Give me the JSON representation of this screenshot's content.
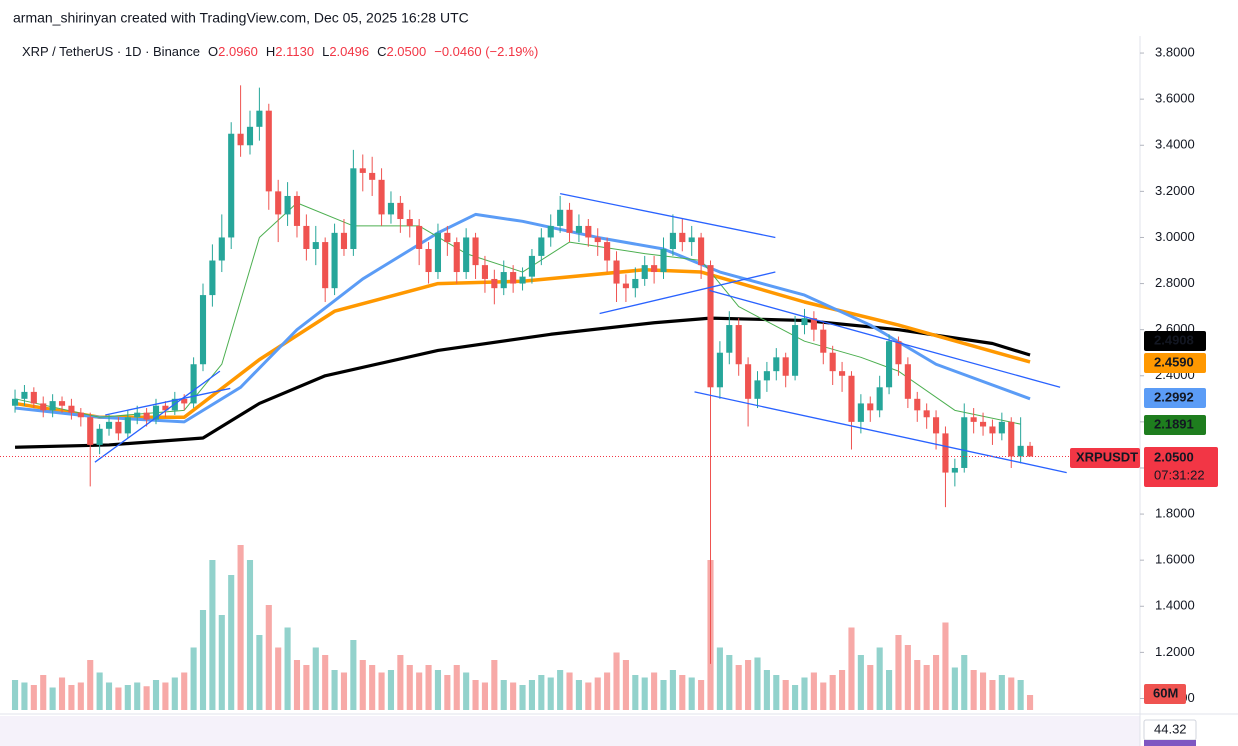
{
  "header": {
    "credit": "arman_shirinyan created with TradingView.com, Dec 05, 2025 16:28 UTC",
    "symbol": "XRP / TetherUS · 1D · Binance",
    "ohlc": [
      {
        "label": "O",
        "value": "2.0960"
      },
      {
        "label": "H",
        "value": "2.1130"
      },
      {
        "label": "L",
        "value": "2.0496"
      },
      {
        "label": "C",
        "value": "2.0500"
      }
    ],
    "change": "−0.0460 (−2.19%)"
  },
  "chart_data": {
    "type": "candlestick",
    "up_color": "#26a69a",
    "down_color": "#ef5350",
    "volume_up_color": "rgba(38,166,154,0.5)",
    "volume_down_color": "rgba(239,83,80,0.5)",
    "open": [
      2.27,
      2.3,
      2.33,
      2.28,
      2.25,
      2.29,
      2.27,
      2.24,
      2.22,
      2.1,
      2.17,
      2.2,
      2.15,
      2.22,
      2.24,
      2.21,
      2.27,
      2.25,
      2.3,
      2.28,
      2.45,
      2.75,
      2.9,
      3.0,
      3.45,
      3.4,
      3.48,
      3.55,
      3.2,
      3.1,
      3.18,
      3.05,
      2.95,
      2.98,
      2.78,
      3.02,
      2.95,
      3.3,
      3.28,
      3.25,
      3.1,
      3.15,
      3.08,
      3.05,
      2.95,
      2.85,
      3.02,
      2.98,
      2.85,
      3.0,
      2.88,
      2.82,
      2.78,
      2.85,
      2.8,
      2.83,
      2.92,
      3.0,
      3.05,
      3.12,
      3.02,
      3.05,
      3.0,
      2.98,
      2.9,
      2.8,
      2.78,
      2.82,
      2.88,
      2.85,
      2.95,
      3.02,
      2.98,
      3.0,
      2.88,
      2.35,
      2.5,
      2.62,
      2.45,
      2.3,
      2.38,
      2.42,
      2.48,
      2.4,
      2.62,
      2.65,
      2.6,
      2.5,
      2.42,
      2.4,
      2.2,
      2.28,
      2.25,
      2.35,
      2.55,
      2.45,
      2.3,
      2.25,
      2.22,
      2.15,
      1.98,
      2.0,
      2.22,
      2.2,
      2.18,
      2.15,
      2.2,
      2.05,
      2.096
    ],
    "high": [
      2.34,
      2.36,
      2.35,
      2.31,
      2.32,
      2.31,
      2.3,
      2.26,
      2.24,
      2.19,
      2.23,
      2.22,
      2.25,
      2.27,
      2.26,
      2.3,
      2.29,
      2.33,
      2.32,
      2.48,
      2.8,
      2.97,
      3.1,
      3.5,
      3.66,
      3.55,
      3.65,
      3.58,
      3.25,
      3.24,
      3.2,
      3.1,
      3.05,
      3.0,
      3.06,
      3.08,
      3.38,
      3.36,
      3.35,
      3.3,
      3.2,
      3.18,
      3.12,
      3.08,
      2.98,
      3.06,
      3.05,
      3.0,
      3.04,
      3.02,
      2.92,
      2.86,
      2.9,
      2.88,
      2.87,
      2.95,
      3.04,
      3.1,
      3.18,
      3.15,
      3.1,
      3.08,
      3.04,
      3.0,
      2.94,
      2.84,
      2.87,
      2.92,
      2.92,
      3.0,
      3.1,
      3.08,
      3.05,
      3.02,
      2.9,
      2.55,
      2.68,
      2.65,
      2.48,
      2.42,
      2.46,
      2.52,
      2.5,
      2.66,
      2.69,
      2.68,
      2.63,
      2.53,
      2.46,
      2.42,
      2.32,
      2.31,
      2.4,
      2.58,
      2.57,
      2.48,
      2.33,
      2.28,
      2.25,
      2.18,
      2.04,
      2.28,
      2.26,
      2.24,
      2.21,
      2.24,
      2.22,
      2.22,
      2.113
    ],
    "low": [
      2.24,
      2.27,
      2.26,
      2.22,
      2.22,
      2.24,
      2.21,
      2.18,
      1.92,
      2.06,
      2.14,
      2.12,
      2.13,
      2.19,
      2.18,
      2.19,
      2.22,
      2.23,
      2.25,
      2.26,
      2.42,
      2.7,
      2.85,
      2.95,
      3.35,
      3.36,
      3.42,
      3.12,
      2.98,
      3.05,
      3.0,
      2.9,
      2.88,
      2.72,
      2.75,
      2.92,
      2.92,
      3.2,
      3.18,
      3.05,
      3.06,
      3.02,
      3.0,
      2.88,
      2.8,
      2.82,
      2.92,
      2.8,
      2.82,
      2.82,
      2.76,
      2.71,
      2.75,
      2.76,
      2.77,
      2.8,
      2.88,
      2.96,
      3.02,
      2.98,
      2.98,
      2.96,
      2.92,
      2.85,
      2.72,
      2.72,
      2.74,
      2.79,
      2.8,
      2.82,
      2.92,
      2.94,
      2.92,
      2.82,
      1.15,
      2.3,
      2.45,
      2.4,
      2.18,
      2.26,
      2.33,
      2.38,
      2.35,
      2.38,
      2.58,
      2.55,
      2.45,
      2.36,
      2.33,
      2.08,
      2.15,
      2.2,
      2.22,
      2.32,
      2.4,
      2.26,
      2.2,
      2.17,
      2.08,
      1.83,
      1.92,
      1.98,
      2.15,
      2.14,
      2.1,
      2.12,
      2.0,
      2.02,
      2.0496
    ],
    "close": [
      2.3,
      2.33,
      2.28,
      2.25,
      2.29,
      2.27,
      2.24,
      2.22,
      2.1,
      2.17,
      2.2,
      2.15,
      2.22,
      2.24,
      2.21,
      2.27,
      2.25,
      2.3,
      2.28,
      2.45,
      2.75,
      2.9,
      3.0,
      3.45,
      3.4,
      3.48,
      3.55,
      3.2,
      3.1,
      3.18,
      3.05,
      2.95,
      2.98,
      2.78,
      3.02,
      2.95,
      3.3,
      3.28,
      3.25,
      3.1,
      3.15,
      3.08,
      3.05,
      2.95,
      2.85,
      3.02,
      2.98,
      2.85,
      3.0,
      2.88,
      2.82,
      2.78,
      2.85,
      2.8,
      2.83,
      2.92,
      3.0,
      3.05,
      3.12,
      3.02,
      3.05,
      3.0,
      2.98,
      2.9,
      2.8,
      2.78,
      2.82,
      2.88,
      2.85,
      2.95,
      3.02,
      2.98,
      3.0,
      2.88,
      2.35,
      2.5,
      2.62,
      2.45,
      2.3,
      2.38,
      2.42,
      2.48,
      2.4,
      2.62,
      2.65,
      2.6,
      2.5,
      2.42,
      2.4,
      2.2,
      2.28,
      2.25,
      2.35,
      2.55,
      2.45,
      2.3,
      2.25,
      2.22,
      2.15,
      1.98,
      2.0,
      2.22,
      2.2,
      2.18,
      2.15,
      2.2,
      2.05,
      2.096,
      2.05
    ],
    "volume": [
      120,
      110,
      100,
      140,
      90,
      130,
      100,
      110,
      200,
      150,
      110,
      90,
      100,
      110,
      95,
      120,
      110,
      130,
      150,
      250,
      400,
      600,
      380,
      540,
      660,
      600,
      300,
      420,
      250,
      330,
      200,
      180,
      250,
      220,
      160,
      150,
      280,
      200,
      180,
      150,
      160,
      220,
      180,
      150,
      180,
      160,
      140,
      180,
      150,
      120,
      110,
      200,
      120,
      110,
      100,
      120,
      140,
      130,
      160,
      150,
      120,
      110,
      130,
      150,
      230,
      200,
      140,
      130,
      150,
      120,
      160,
      140,
      130,
      120,
      600,
      250,
      220,
      180,
      200,
      210,
      160,
      140,
      120,
      100,
      130,
      150,
      110,
      140,
      160,
      330,
      220,
      180,
      250,
      160,
      300,
      260,
      200,
      180,
      220,
      350,
      170,
      220,
      160,
      150,
      120,
      140,
      130,
      120,
      60
    ],
    "volume_lim": [
      0,
      680
    ],
    "volume_label": "60M",
    "moving_averages": [
      {
        "color": "#000000",
        "width": 3.2,
        "x": [
          0,
          10,
          20,
          26,
          33,
          45,
          57,
          68,
          74,
          84,
          94,
          104,
          108
        ],
        "values": [
          2.09,
          2.1,
          2.13,
          2.28,
          2.4,
          2.51,
          2.58,
          2.63,
          2.65,
          2.64,
          2.6,
          2.54,
          2.49
        ]
      },
      {
        "color": "#ff9800",
        "width": 3.5,
        "x": [
          0,
          9,
          18,
          26,
          34,
          45,
          54,
          67,
          73,
          84,
          94,
          108
        ],
        "values": [
          2.28,
          2.22,
          2.22,
          2.47,
          2.68,
          2.8,
          2.81,
          2.86,
          2.85,
          2.72,
          2.62,
          2.46
        ]
      },
      {
        "color": "#5b9cf6",
        "width": 3,
        "x": [
          0,
          9,
          18,
          24,
          30,
          37,
          45,
          49,
          54,
          62,
          69,
          75,
          84,
          91,
          98,
          108
        ],
        "values": [
          2.26,
          2.22,
          2.2,
          2.35,
          2.6,
          2.82,
          3.02,
          3.1,
          3.07,
          3.0,
          2.95,
          2.85,
          2.75,
          2.62,
          2.45,
          2.3
        ]
      },
      {
        "color": "#4caf50",
        "width": 1,
        "x": [
          0,
          9,
          18,
          22,
          26,
          30,
          36,
          43,
          48,
          54,
          59,
          67,
          73,
          77,
          84,
          90,
          94,
          100,
          107
        ],
        "values": [
          2.3,
          2.22,
          2.25,
          2.45,
          3.0,
          3.15,
          3.05,
          3.05,
          2.93,
          2.85,
          2.98,
          2.93,
          2.9,
          2.7,
          2.55,
          2.48,
          2.42,
          2.25,
          2.19
        ]
      }
    ],
    "drawing_color": "#2962ff",
    "drawings": [
      {
        "x": [
          8.5,
          21.8
        ],
        "values": [
          2.025,
          2.42
        ]
      },
      {
        "x": [
          9.6,
          22.9
        ],
        "values": [
          2.23,
          2.345
        ]
      },
      {
        "x": [
          58,
          80.9
        ],
        "values": [
          3.19,
          3.0
        ]
      },
      {
        "x": [
          62.2,
          80.9
        ],
        "values": [
          2.67,
          2.85
        ]
      },
      {
        "x": [
          72.3,
          111.9
        ],
        "values": [
          2.33,
          1.98
        ]
      },
      {
        "x": [
          73.9,
          111.2
        ],
        "values": [
          2.77,
          2.35
        ]
      }
    ],
    "xlim": [
      -1.6,
      119.7
    ],
    "ylim": [
      0.95,
      3.874
    ],
    "yticks": [
      {
        "value": 1.0,
        "label": "1.0000"
      },
      {
        "value": 1.2,
        "label": "1.2000"
      },
      {
        "value": 1.4,
        "label": "1.4000"
      },
      {
        "value": 1.6,
        "label": "1.6000"
      },
      {
        "value": 1.8,
        "label": "1.8000"
      },
      {
        "value": 2.0,
        "label": "2.0000"
      },
      {
        "value": 2.2,
        "label": "2.2000"
      },
      {
        "value": 2.4,
        "label": "2.4000"
      },
      {
        "value": 2.6,
        "label": "2.6000"
      },
      {
        "value": 2.8,
        "label": "2.8000"
      },
      {
        "value": 3.0,
        "label": "3.0000"
      },
      {
        "value": 3.2,
        "label": "3.2000"
      },
      {
        "value": 3.4,
        "label": "3.4000"
      },
      {
        "value": 3.6,
        "label": "3.6000"
      },
      {
        "value": 3.8,
        "label": "3.8000"
      }
    ],
    "grid": false,
    "price_labels": [
      {
        "text": "2.4908",
        "bg": "#000000",
        "fg": "#ffffff"
      },
      {
        "text": "2.4590",
        "bg": "#ff9800",
        "fg": "#000000"
      },
      {
        "text": "2.2992",
        "bg": "#5b9cf6",
        "fg": "#000000"
      },
      {
        "text": "2.1891",
        "bg": "#1e7d1e",
        "fg": "#ffffff"
      }
    ],
    "last_price": {
      "symbol": "XRPUSDT",
      "price": "2.0500",
      "countdown": "07:31:22",
      "color": "#f23645"
    },
    "rsi_label": "44.32"
  }
}
